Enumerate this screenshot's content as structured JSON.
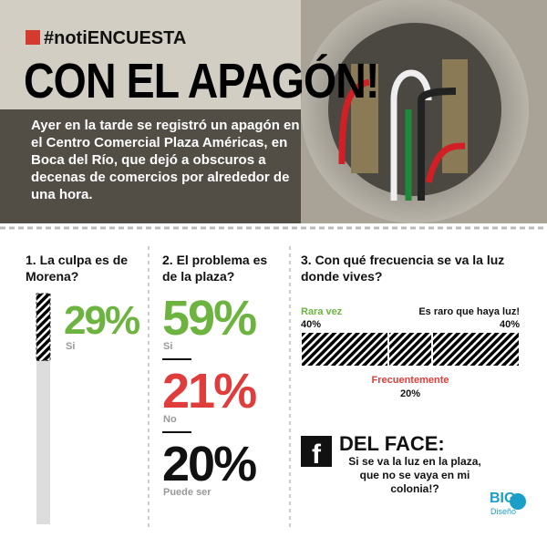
{
  "header": {
    "hashtag": "#notiENCUESTA",
    "title": "CON EL APAGÓN!",
    "body": "Ayer en la tarde se registró un apagón en el Centro Comercial Plaza Américas, en Boca del Río, que dejó a obscuros a decenas de comercios por alrededor de una hora."
  },
  "polls": [
    {
      "question": "1. La culpa es de Morena?",
      "answers": [
        {
          "label": "Si",
          "value": 29,
          "value_label": "29%",
          "color": "#6db33f"
        }
      ]
    },
    {
      "question": "2. El problema es de la plaza?",
      "answers": [
        {
          "label": "Si",
          "value": 59,
          "value_label": "59%",
          "color": "#6db33f"
        },
        {
          "label": "No",
          "value": 21,
          "value_label": "21%",
          "color": "#e03c3c"
        },
        {
          "label": "Puede ser",
          "value": 20,
          "value_label": "20%",
          "color": "#111111"
        }
      ]
    },
    {
      "question": "3. Con qué frecuencia se va la luz donde vives?",
      "answers": [
        {
          "label": "Rara vez",
          "value": 40,
          "value_label": "40%",
          "color": "#6db33f"
        },
        {
          "label": "Frecuentemente",
          "value": 20,
          "value_label": "20%",
          "color": "#e03c3c"
        },
        {
          "label": "Es raro que haya luz!",
          "value": 40,
          "value_label": "40%",
          "color": "#111111"
        }
      ]
    }
  ],
  "quote": {
    "title": "DEL FACE:",
    "text": "Si se va la luz en la plaza, que no se vaya en mi colonia!?"
  },
  "logo": {
    "brand": "BIG",
    "sub": "Diseño"
  }
}
